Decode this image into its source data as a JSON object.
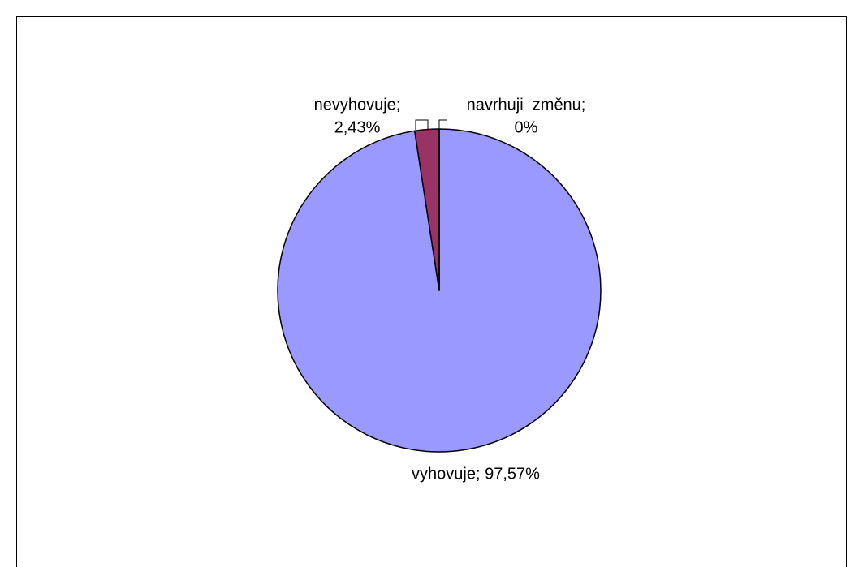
{
  "chart_data": {
    "type": "pie",
    "labels": [
      [
        "vyhovuje; 97,57%"
      ],
      [
        "nevyhovuje;",
        "2,43%"
      ],
      [
        "navrhuji  změnu;",
        "0%"
      ]
    ],
    "values": [
      97.57,
      2.43,
      0
    ],
    "colors": [
      "#9999ff",
      "#993366",
      "#ffffcc"
    ]
  }
}
